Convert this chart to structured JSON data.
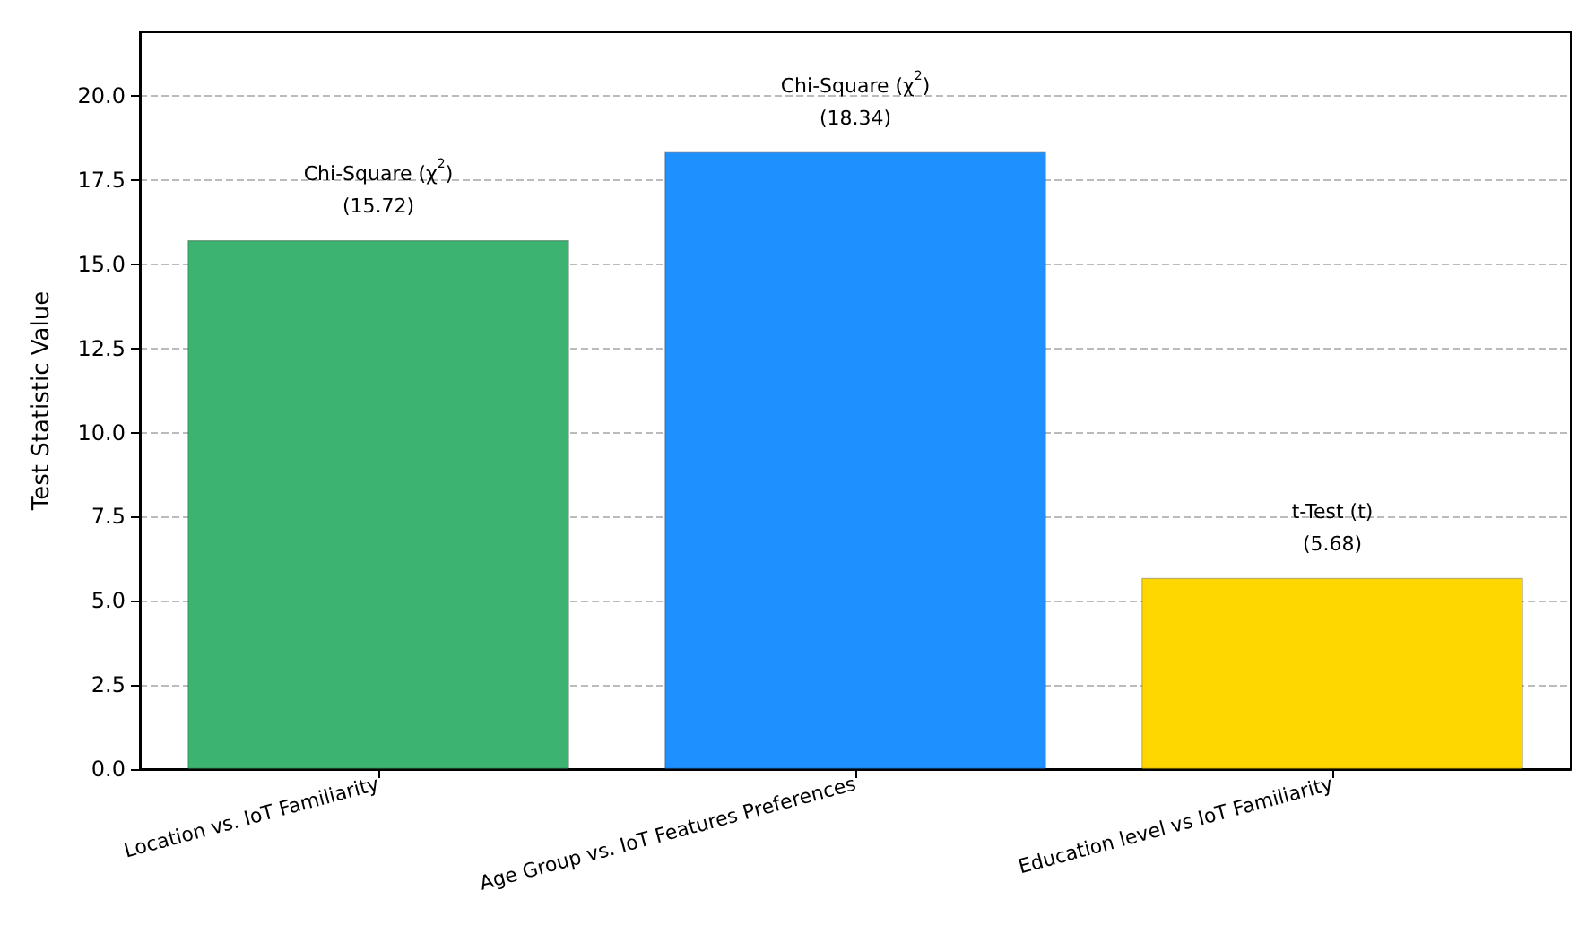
{
  "chart_data": {
    "type": "bar",
    "ylabel": "Test Statistic Value",
    "categories": [
      "Location vs. IoT Familiarity",
      "Age Group vs. IoT Features Preferences",
      "Education level vs IoT Familiarity"
    ],
    "values": [
      15.72,
      18.34,
      5.68
    ],
    "colors": [
      "#3cb371",
      "#1e90ff",
      "#ffd700"
    ],
    "value_labels": [
      "Chi-Square (χ$^{2}$)\n(15.72)",
      "Chi-Square (χ$^{2}$)\n(18.34)",
      "t-Test (t)\n(5.68)"
    ],
    "ylim": [
      0,
      21.9
    ],
    "yticks": [
      {
        "value": 0,
        "label": "0.0"
      },
      {
        "value": 2.5,
        "label": "2.5"
      },
      {
        "value": 5,
        "label": "5.0"
      },
      {
        "value": 7.5,
        "label": "7.5"
      },
      {
        "value": 10,
        "label": "10.0"
      },
      {
        "value": 12.5,
        "label": "12.5"
      },
      {
        "value": 15,
        "label": "15.0"
      },
      {
        "value": 17.5,
        "label": "17.5"
      },
      {
        "value": 20,
        "label": "20.0"
      }
    ],
    "grid": "y"
  }
}
